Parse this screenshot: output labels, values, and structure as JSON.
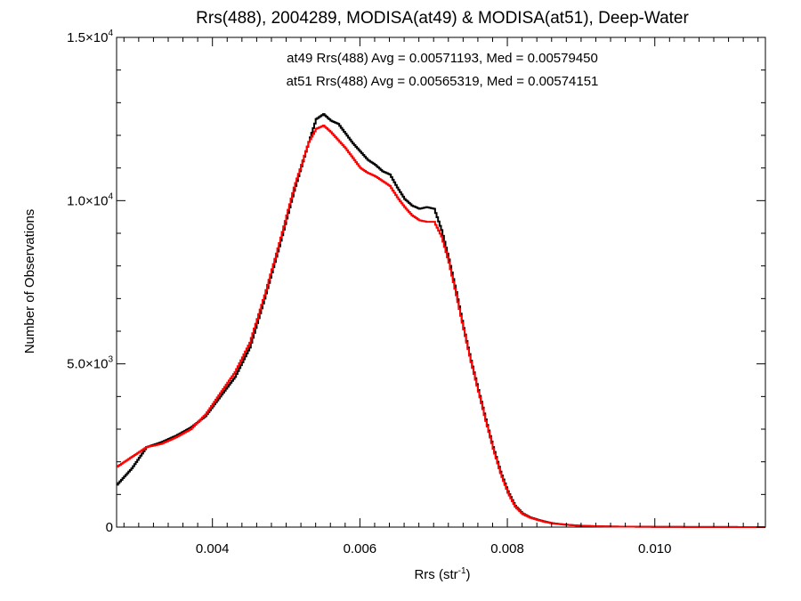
{
  "chart_data": {
    "type": "line",
    "title": "Rrs(488), 2004289, MODISA(at49) & MODISA(at51), Deep-Water",
    "xlabel_main": "Rrs (str",
    "xlabel_sup": "-1",
    "xlabel_close": ")",
    "ylabel": "Number of Observations",
    "xlim": [
      0.0027,
      0.0115
    ],
    "ylim": [
      0,
      15000
    ],
    "x_ticks": [
      {
        "value": 0.004,
        "label": "0.004"
      },
      {
        "value": 0.006,
        "label": "0.006"
      },
      {
        "value": 0.008,
        "label": "0.008"
      },
      {
        "value": 0.01,
        "label": "0.010"
      }
    ],
    "y_ticks": [
      {
        "value": 0,
        "mant": "0",
        "exp": ""
      },
      {
        "value": 5000,
        "mant": "5.0×10",
        "exp": "3"
      },
      {
        "value": 10000,
        "mant": "1.0×10",
        "exp": "4"
      },
      {
        "value": 15000,
        "mant": "1.5×10",
        "exp": "4"
      }
    ],
    "annotations": [
      {
        "text": "at49 Rrs(488) Avg = 0.00571193, Med = 0.00579450",
        "color": "#000000"
      },
      {
        "text": "at51 Rrs(488) Avg = 0.00565319, Med = 0.00574151",
        "color": "#ff0000"
      }
    ],
    "series": [
      {
        "name": "at49",
        "color": "#000000",
        "points": [
          [
            0.0027,
            1300
          ],
          [
            0.0029,
            1800
          ],
          [
            0.0031,
            2450
          ],
          [
            0.0033,
            2600
          ],
          [
            0.0035,
            2800
          ],
          [
            0.0037,
            3050
          ],
          [
            0.0039,
            3400
          ],
          [
            0.0041,
            4000
          ],
          [
            0.0043,
            4600
          ],
          [
            0.0045,
            5500
          ],
          [
            0.0047,
            7000
          ],
          [
            0.0049,
            8600
          ],
          [
            0.0051,
            10300
          ],
          [
            0.0053,
            11800
          ],
          [
            0.0054,
            12500
          ],
          [
            0.0055,
            12650
          ],
          [
            0.0056,
            12450
          ],
          [
            0.0057,
            12350
          ],
          [
            0.0058,
            12050
          ],
          [
            0.0059,
            11750
          ],
          [
            0.006,
            11500
          ],
          [
            0.0061,
            11250
          ],
          [
            0.0062,
            11100
          ],
          [
            0.0063,
            10900
          ],
          [
            0.0064,
            10800
          ],
          [
            0.0065,
            10400
          ],
          [
            0.0066,
            10050
          ],
          [
            0.0067,
            9850
          ],
          [
            0.0068,
            9750
          ],
          [
            0.0069,
            9800
          ],
          [
            0.007,
            9750
          ],
          [
            0.0071,
            9100
          ],
          [
            0.0072,
            8200
          ],
          [
            0.0073,
            7200
          ],
          [
            0.0074,
            6100
          ],
          [
            0.0075,
            5100
          ],
          [
            0.0076,
            4200
          ],
          [
            0.0077,
            3300
          ],
          [
            0.0078,
            2450
          ],
          [
            0.0079,
            1700
          ],
          [
            0.008,
            1100
          ],
          [
            0.0081,
            650
          ],
          [
            0.0082,
            420
          ],
          [
            0.0083,
            300
          ],
          [
            0.0084,
            230
          ],
          [
            0.0085,
            170
          ],
          [
            0.0086,
            120
          ],
          [
            0.0088,
            70
          ],
          [
            0.009,
            40
          ],
          [
            0.0092,
            25
          ],
          [
            0.0095,
            15
          ],
          [
            0.01,
            8
          ],
          [
            0.0105,
            4
          ],
          [
            0.011,
            2
          ],
          [
            0.0115,
            1
          ]
        ]
      },
      {
        "name": "at51",
        "color": "#ff0000",
        "points": [
          [
            0.0027,
            1850
          ],
          [
            0.0029,
            2150
          ],
          [
            0.0031,
            2450
          ],
          [
            0.0033,
            2550
          ],
          [
            0.0035,
            2750
          ],
          [
            0.0037,
            3000
          ],
          [
            0.0039,
            3450
          ],
          [
            0.0041,
            4100
          ],
          [
            0.0043,
            4750
          ],
          [
            0.0045,
            5650
          ],
          [
            0.0047,
            7100
          ],
          [
            0.0049,
            8700
          ],
          [
            0.0051,
            10400
          ],
          [
            0.0053,
            11800
          ],
          [
            0.0054,
            12200
          ],
          [
            0.0055,
            12300
          ],
          [
            0.0056,
            12100
          ],
          [
            0.0057,
            11850
          ],
          [
            0.0058,
            11600
          ],
          [
            0.0059,
            11300
          ],
          [
            0.006,
            11000
          ],
          [
            0.0061,
            10850
          ],
          [
            0.0062,
            10750
          ],
          [
            0.0063,
            10600
          ],
          [
            0.0064,
            10450
          ],
          [
            0.0065,
            10100
          ],
          [
            0.0066,
            9800
          ],
          [
            0.0067,
            9550
          ],
          [
            0.0068,
            9400
          ],
          [
            0.0069,
            9350
          ],
          [
            0.007,
            9350
          ],
          [
            0.0071,
            8900
          ],
          [
            0.0072,
            8100
          ],
          [
            0.0073,
            7100
          ],
          [
            0.0074,
            6050
          ],
          [
            0.0075,
            5050
          ],
          [
            0.0076,
            4150
          ],
          [
            0.0077,
            3250
          ],
          [
            0.0078,
            2400
          ],
          [
            0.0079,
            1650
          ],
          [
            0.008,
            1050
          ],
          [
            0.0081,
            620
          ],
          [
            0.0082,
            400
          ],
          [
            0.0083,
            290
          ],
          [
            0.0084,
            220
          ],
          [
            0.0085,
            160
          ],
          [
            0.0086,
            115
          ],
          [
            0.0088,
            70
          ],
          [
            0.009,
            40
          ],
          [
            0.0092,
            25
          ],
          [
            0.0095,
            15
          ],
          [
            0.01,
            8
          ],
          [
            0.0105,
            4
          ],
          [
            0.011,
            2
          ],
          [
            0.0115,
            1
          ]
        ]
      }
    ]
  }
}
